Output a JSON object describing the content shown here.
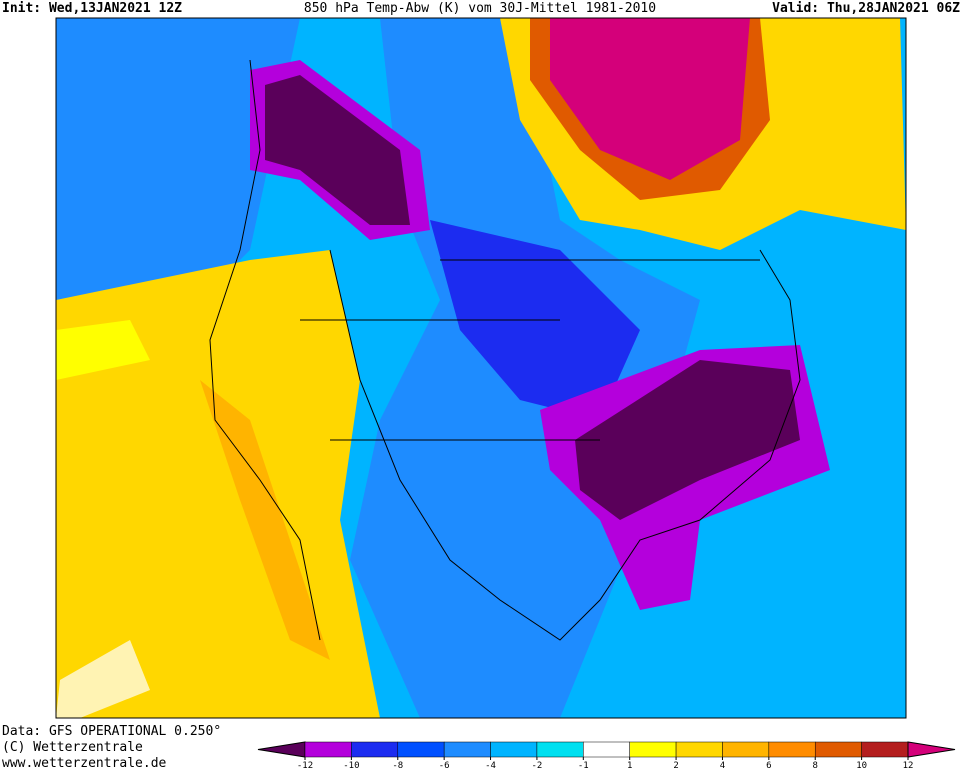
{
  "header": {
    "init": "Init: Wed,13JAN2021 12Z",
    "title": "850 hPa Temp-Abw (K) vom 30J-Mittel 1981-2010",
    "valid": "Valid: Thu,28JAN2021 06Z"
  },
  "footer": {
    "data": "Data: GFS OPERATIONAL 0.250°",
    "copyright": "(C) Wetterzentrale",
    "url": "www.wetterzentrale.de"
  },
  "colorbar": {
    "ticks": [
      -12,
      -10,
      -8,
      -6,
      -4,
      -2,
      -1,
      1,
      2,
      4,
      6,
      8,
      10,
      12
    ],
    "colors": [
      "#5a005a",
      "#b400dc",
      "#1c2cf0",
      "#0050ff",
      "#1e8cff",
      "#00b4ff",
      "#00e0f0",
      "#ffffff",
      "#ffff00",
      "#ffd700",
      "#ffb400",
      "#ff8c00",
      "#e05a00",
      "#b41e1e",
      "#d4007a"
    ]
  }
}
